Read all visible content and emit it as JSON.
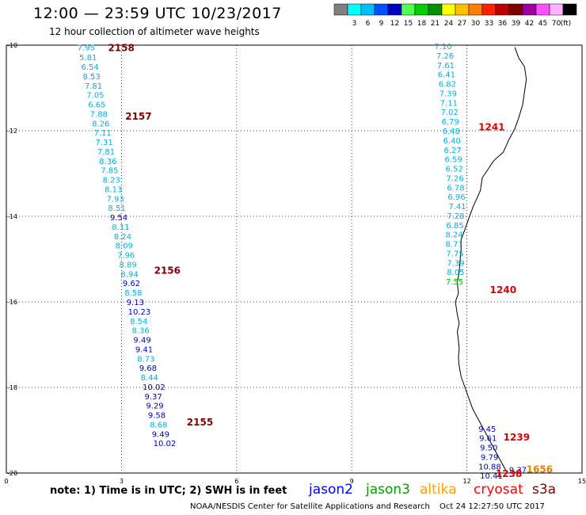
{
  "title": "12:00 — 23:59 UTC 10/23/2017",
  "subtitle": "12 hour collection of altimeter wave heights",
  "colorbar": {
    "colors": [
      "#808080",
      "#00ffff",
      "#00bfff",
      "#0050ff",
      "#0000c0",
      "#50ff50",
      "#00d000",
      "#009000",
      "#ffff00",
      "#ffc000",
      "#ff8000",
      "#ff2000",
      "#c00000",
      "#800000",
      "#a000a0",
      "#ff50ff",
      "#ffb0ff",
      "#000000"
    ],
    "labels": [
      "3",
      "6",
      "9",
      "12",
      "15",
      "18",
      "21",
      "24",
      "27",
      "30",
      "33",
      "36",
      "39",
      "42",
      "45",
      "70"
    ],
    "unit": "(ft)"
  },
  "axes": {
    "x_ticks": [
      "0",
      "3",
      "6",
      "9",
      "12",
      "15"
    ],
    "y_ticks": [
      "-10",
      "-12",
      "-14",
      "-16",
      "-18",
      "-20"
    ]
  },
  "tracks": [
    {
      "id": "2158",
      "color": "#800000",
      "lat": -10.05,
      "lon": 2.65
    },
    {
      "id": "2157",
      "color": "#800000",
      "lat": -11.65,
      "lon": 3.1
    },
    {
      "id": "2156",
      "color": "#800000",
      "lat": -15.25,
      "lon": 3.85
    },
    {
      "id": "2155",
      "color": "#800000",
      "lat": -18.8,
      "lon": 4.7
    },
    {
      "id": "1241",
      "color": "#e00000",
      "lat": -11.9,
      "lon": 12.3
    },
    {
      "id": "1240",
      "color": "#e00000",
      "lat": -15.7,
      "lon": 12.6
    },
    {
      "id": "1239",
      "color": "#e00000",
      "lat": -19.15,
      "lon": 12.95
    },
    {
      "id": "1238",
      "color": "#e00000",
      "lat": -20.0,
      "lon": 12.75
    },
    {
      "id": "1656",
      "color": "#e08000",
      "lat": -19.9,
      "lon": 13.55
    }
  ],
  "left_track": [
    {
      "v": "7.95",
      "c": "#00b0e0",
      "lat": -10.05,
      "lon": 1.85
    },
    {
      "v": "5.81",
      "c": "#00b0e0",
      "lat": -10.28,
      "lon": 1.9
    },
    {
      "v": "6.54",
      "c": "#00b0e0",
      "lat": -10.5,
      "lon": 1.95
    },
    {
      "v": "8.53",
      "c": "#00b0e0",
      "lat": -10.72,
      "lon": 1.99
    },
    {
      "v": "7.81",
      "c": "#00b0e0",
      "lat": -10.94,
      "lon": 2.04
    },
    {
      "v": "7.05",
      "c": "#00b0e0",
      "lat": -11.16,
      "lon": 2.09
    },
    {
      "v": "6.65",
      "c": "#00b0e0",
      "lat": -11.38,
      "lon": 2.13
    },
    {
      "v": "7.88",
      "c": "#00b0e0",
      "lat": -11.6,
      "lon": 2.18
    },
    {
      "v": "8.26",
      "c": "#00b0e0",
      "lat": -11.82,
      "lon": 2.23
    },
    {
      "v": "7.11",
      "c": "#00b0e0",
      "lat": -12.04,
      "lon": 2.28
    },
    {
      "v": "7.31",
      "c": "#00b0e0",
      "lat": -12.26,
      "lon": 2.32
    },
    {
      "v": "7.81",
      "c": "#00b0e0",
      "lat": -12.48,
      "lon": 2.37
    },
    {
      "v": "8.36",
      "c": "#00b0e0",
      "lat": -12.7,
      "lon": 2.42
    },
    {
      "v": "7.85",
      "c": "#00b0e0",
      "lat": -12.92,
      "lon": 2.46
    },
    {
      "v": "8.23",
      "c": "#00b0e0",
      "lat": -13.14,
      "lon": 2.51
    },
    {
      "v": "8.13",
      "c": "#00b0e0",
      "lat": -13.36,
      "lon": 2.56
    },
    {
      "v": "7.93",
      "c": "#00b0e0",
      "lat": -13.58,
      "lon": 2.61
    },
    {
      "v": "8.51",
      "c": "#00b0e0",
      "lat": -13.8,
      "lon": 2.65
    },
    {
      "v": "9.54",
      "c": "#0000c0",
      "lat": -14.02,
      "lon": 2.7
    },
    {
      "v": "8.11",
      "c": "#00b0e0",
      "lat": -14.24,
      "lon": 2.75
    },
    {
      "v": "8.24",
      "c": "#00b0e0",
      "lat": -14.46,
      "lon": 2.8
    },
    {
      "v": "8.09",
      "c": "#00b0e0",
      "lat": -14.68,
      "lon": 2.84
    },
    {
      "v": "7.96",
      "c": "#00b0e0",
      "lat": -14.9,
      "lon": 2.89
    },
    {
      "v": "8.89",
      "c": "#00b0e0",
      "lat": -15.12,
      "lon": 2.94
    },
    {
      "v": "8.94",
      "c": "#00b0e0",
      "lat": -15.34,
      "lon": 2.98
    },
    {
      "v": "9.62",
      "c": "#0000c0",
      "lat": -15.56,
      "lon": 3.03
    },
    {
      "v": "8.58",
      "c": "#00b0e0",
      "lat": -15.78,
      "lon": 3.08
    },
    {
      "v": "9.13",
      "c": "#0000c0",
      "lat": -16.0,
      "lon": 3.13
    },
    {
      "v": "10.23",
      "c": "#0000c0",
      "lat": -16.22,
      "lon": 3.17
    },
    {
      "v": "8.54",
      "c": "#00b0e0",
      "lat": -16.44,
      "lon": 3.22
    },
    {
      "v": "8.36",
      "c": "#00b0e0",
      "lat": -16.66,
      "lon": 3.27
    },
    {
      "v": "9.49",
      "c": "#0000c0",
      "lat": -16.88,
      "lon": 3.31
    },
    {
      "v": "9.41",
      "c": "#0000c0",
      "lat": -17.1,
      "lon": 3.36
    },
    {
      "v": "8.73",
      "c": "#00b0e0",
      "lat": -17.32,
      "lon": 3.41
    },
    {
      "v": "9.68",
      "c": "#0000c0",
      "lat": -17.54,
      "lon": 3.46
    },
    {
      "v": "8.44",
      "c": "#00b0e0",
      "lat": -17.76,
      "lon": 3.5
    },
    {
      "v": "10.02",
      "c": "#0000c0",
      "lat": -17.98,
      "lon": 3.55
    },
    {
      "v": "9.37",
      "c": "#0000c0",
      "lat": -18.2,
      "lon": 3.6
    },
    {
      "v": "9.29",
      "c": "#0000c0",
      "lat": -18.42,
      "lon": 3.64
    },
    {
      "v": "9.58",
      "c": "#0000c0",
      "lat": -18.64,
      "lon": 3.69
    },
    {
      "v": "8.68",
      "c": "#00b0e0",
      "lat": -18.86,
      "lon": 3.74
    },
    {
      "v": "9.49",
      "c": "#0000c0",
      "lat": -19.08,
      "lon": 3.79
    },
    {
      "v": "10.02",
      "c": "#0000c0",
      "lat": -19.3,
      "lon": 3.83
    }
  ],
  "right_track": [
    {
      "v": "7.10",
      "c": "#00b0e0",
      "lat": -10.02,
      "lon": 11.15
    },
    {
      "v": "7.26",
      "c": "#00b0e0",
      "lat": -10.24,
      "lon": 11.2
    },
    {
      "v": "7.61",
      "c": "#00b0e0",
      "lat": -10.46,
      "lon": 11.22
    },
    {
      "v": "6.41",
      "c": "#00b0e0",
      "lat": -10.68,
      "lon": 11.24
    },
    {
      "v": "6.82",
      "c": "#00b0e0",
      "lat": -10.9,
      "lon": 11.26
    },
    {
      "v": "7.39",
      "c": "#00b0e0",
      "lat": -11.12,
      "lon": 11.28
    },
    {
      "v": "7.11",
      "c": "#00b0e0",
      "lat": -11.34,
      "lon": 11.3
    },
    {
      "v": "7.02",
      "c": "#00b0e0",
      "lat": -11.56,
      "lon": 11.32
    },
    {
      "v": "6.79",
      "c": "#00b0e0",
      "lat": -11.78,
      "lon": 11.34
    },
    {
      "v": "6.48",
      "c": "#00b0e0",
      "lat": -12.0,
      "lon": 11.36
    },
    {
      "v": "6.40",
      "c": "#00b0e0",
      "lat": -12.22,
      "lon": 11.38
    },
    {
      "v": "6.27",
      "c": "#00b0e0",
      "lat": -12.44,
      "lon": 11.4
    },
    {
      "v": "6.59",
      "c": "#00b0e0",
      "lat": -12.66,
      "lon": 11.42
    },
    {
      "v": "6.52",
      "c": "#00b0e0",
      "lat": -12.88,
      "lon": 11.44
    },
    {
      "v": "7.26",
      "c": "#00b0e0",
      "lat": -13.1,
      "lon": 11.46
    },
    {
      "v": "6.78",
      "c": "#00b0e0",
      "lat": -13.32,
      "lon": 11.48
    },
    {
      "v": "6.96",
      "c": "#00b0e0",
      "lat": -13.54,
      "lon": 11.5
    },
    {
      "v": "7.41",
      "c": "#00b0e0",
      "lat": -13.76,
      "lon": 11.52
    },
    {
      "v": "7.28",
      "c": "#00b0e0",
      "lat": -13.98,
      "lon": 11.48
    },
    {
      "v": "6.85",
      "c": "#00b0e0",
      "lat": -14.2,
      "lon": 11.46
    },
    {
      "v": "8.24",
      "c": "#00b0e0",
      "lat": -14.42,
      "lon": 11.44
    },
    {
      "v": "8.71",
      "c": "#00b0e0",
      "lat": -14.64,
      "lon": 11.44
    },
    {
      "v": "7.75",
      "c": "#00b0e0",
      "lat": -14.86,
      "lon": 11.46
    },
    {
      "v": "7.39",
      "c": "#00b0e0",
      "lat": -15.08,
      "lon": 11.48
    },
    {
      "v": "8.05",
      "c": "#00b0e0",
      "lat": -15.3,
      "lon": 11.48
    },
    {
      "v": "7.55",
      "c": "#00c000",
      "lat": -15.52,
      "lon": 11.45
    },
    {
      "v": "9.45",
      "c": "#0000c0",
      "lat": -18.96,
      "lon": 12.3
    },
    {
      "v": "9.61",
      "c": "#0000c0",
      "lat": -19.18,
      "lon": 12.32
    },
    {
      "v": "9.50",
      "c": "#0000c0",
      "lat": -19.4,
      "lon": 12.34
    },
    {
      "v": "9.79",
      "c": "#0000c0",
      "lat": -19.62,
      "lon": 12.36
    },
    {
      "v": "10.88",
      "c": "#0000c0",
      "lat": -19.84,
      "lon": 12.3
    },
    {
      "v": "10.41",
      "c": "#0000c0",
      "lat": -20.06,
      "lon": 12.34
    },
    {
      "v": "9.37",
      "c": "#0000c0",
      "lat": -19.92,
      "lon": 13.1
    }
  ],
  "coastline": [
    [
      13.25,
      -10.05
    ],
    [
      13.35,
      -10.3
    ],
    [
      13.5,
      -10.5
    ],
    [
      13.55,
      -10.8
    ],
    [
      13.5,
      -11.1
    ],
    [
      13.45,
      -11.4
    ],
    [
      13.35,
      -11.7
    ],
    [
      13.25,
      -11.95
    ],
    [
      13.1,
      -12.2
    ],
    [
      12.95,
      -12.5
    ],
    [
      12.7,
      -12.7
    ],
    [
      12.55,
      -12.9
    ],
    [
      12.4,
      -13.1
    ],
    [
      12.35,
      -13.4
    ],
    [
      12.25,
      -13.6
    ],
    [
      12.15,
      -13.8
    ],
    [
      12.05,
      -14.05
    ],
    [
      11.95,
      -14.3
    ],
    [
      11.85,
      -14.55
    ],
    [
      11.85,
      -14.8
    ],
    [
      11.82,
      -15.05
    ],
    [
      11.8,
      -15.3
    ],
    [
      11.75,
      -15.55
    ],
    [
      11.78,
      -15.8
    ],
    [
      11.7,
      -16.0
    ],
    [
      11.75,
      -16.3
    ],
    [
      11.8,
      -16.5
    ],
    [
      11.75,
      -16.7
    ],
    [
      11.78,
      -16.9
    ],
    [
      11.8,
      -17.1
    ],
    [
      11.78,
      -17.3
    ],
    [
      11.8,
      -17.5
    ],
    [
      11.85,
      -17.75
    ],
    [
      11.95,
      -18.0
    ],
    [
      12.05,
      -18.25
    ],
    [
      12.15,
      -18.5
    ],
    [
      12.3,
      -18.75
    ],
    [
      12.45,
      -19.0
    ],
    [
      12.6,
      -19.25
    ],
    [
      12.75,
      -19.5
    ],
    [
      12.9,
      -19.75
    ],
    [
      13.05,
      -20.0
    ]
  ],
  "note": "note:  1) Time is in UTC; 2) SWH is in feet",
  "missions": [
    {
      "name": "jason2",
      "color": "#0000ff"
    },
    {
      "name": "jason3",
      "color": "#00a000"
    },
    {
      "name": "altika",
      "color": "#ffa000"
    },
    {
      "name": "cryosat",
      "color": "#ff0000"
    },
    {
      "name": "s3a",
      "color": "#800000"
    }
  ],
  "credit": "NOAA/NESDIS Center for Satellite Applications and Research",
  "timestamp": "Oct 24 12:27:50 UTC 2017"
}
